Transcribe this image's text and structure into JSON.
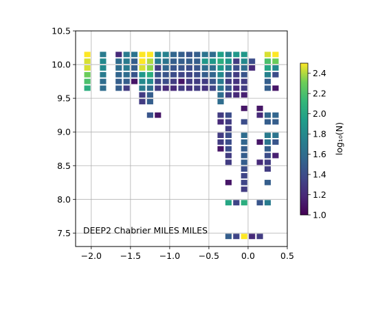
{
  "chart_data": {
    "type": "heatmap",
    "annotation": "DEEP2 Chabrier MILES MILES",
    "xlim": [
      -2.2,
      0.5
    ],
    "ylim": [
      7.3,
      10.5
    ],
    "xticks": [
      -2.0,
      -1.5,
      -1.0,
      -0.5,
      0.0,
      0.5
    ],
    "yticks": [
      7.5,
      8.0,
      8.5,
      9.0,
      9.5,
      10.0,
      10.5
    ],
    "xtick_labels": [
      "−2.0",
      "−1.5",
      "−1.0",
      "−0.5",
      "0.0",
      "0.5"
    ],
    "ytick_labels": [
      "7.5",
      "8.0",
      "8.5",
      "9.0",
      "9.5",
      "10.0",
      "10.5"
    ],
    "grid": true,
    "colorbar": {
      "label": "log₁₀(N)",
      "range": [
        1.0,
        2.5
      ],
      "ticks": [
        1.0,
        1.2,
        1.4,
        1.6,
        1.8,
        2.0,
        2.2,
        2.4
      ],
      "tick_labels": [
        "1.0",
        "1.2",
        "1.4",
        "1.6",
        "1.8",
        "2.0",
        "2.2",
        "2.4"
      ],
      "colormap": "viridis"
    },
    "cells": [
      {
        "x": -2.05,
        "y": 10.15,
        "v": 2.5
      },
      {
        "x": -2.05,
        "y": 10.05,
        "v": 2.45
      },
      {
        "x": -2.05,
        "y": 9.95,
        "v": 2.45
      },
      {
        "x": -2.05,
        "y": 9.85,
        "v": 2.3
      },
      {
        "x": -2.05,
        "y": 9.75,
        "v": 2.2
      },
      {
        "x": -2.05,
        "y": 9.65,
        "v": 2.05
      },
      {
        "x": -1.85,
        "y": 10.15,
        "v": 1.7
      },
      {
        "x": -1.85,
        "y": 10.05,
        "v": 1.8
      },
      {
        "x": -1.85,
        "y": 9.95,
        "v": 1.8
      },
      {
        "x": -1.85,
        "y": 9.85,
        "v": 1.7
      },
      {
        "x": -1.85,
        "y": 9.75,
        "v": 1.6
      },
      {
        "x": -1.85,
        "y": 9.65,
        "v": 1.6
      },
      {
        "x": -1.65,
        "y": 10.15,
        "v": 1.2
      },
      {
        "x": -1.65,
        "y": 10.05,
        "v": 1.6
      },
      {
        "x": -1.65,
        "y": 9.95,
        "v": 1.6
      },
      {
        "x": -1.65,
        "y": 9.85,
        "v": 1.55
      },
      {
        "x": -1.65,
        "y": 9.75,
        "v": 1.5
      },
      {
        "x": -1.65,
        "y": 9.65,
        "v": 1.5
      },
      {
        "x": -1.55,
        "y": 10.15,
        "v": 1.7
      },
      {
        "x": -1.55,
        "y": 10.05,
        "v": 1.7
      },
      {
        "x": -1.55,
        "y": 9.95,
        "v": 1.7
      },
      {
        "x": -1.55,
        "y": 9.85,
        "v": 1.6
      },
      {
        "x": -1.55,
        "y": 9.75,
        "v": 1.5
      },
      {
        "x": -1.55,
        "y": 9.65,
        "v": 1.3
      },
      {
        "x": -1.45,
        "y": 10.15,
        "v": 1.65
      },
      {
        "x": -1.45,
        "y": 10.05,
        "v": 1.5
      },
      {
        "x": -1.45,
        "y": 9.95,
        "v": 1.5
      },
      {
        "x": -1.45,
        "y": 9.85,
        "v": 1.45
      },
      {
        "x": -1.45,
        "y": 9.75,
        "v": 1.1
      },
      {
        "x": -1.35,
        "y": 10.15,
        "v": 2.5
      },
      {
        "x": -1.35,
        "y": 10.05,
        "v": 2.5
      },
      {
        "x": -1.35,
        "y": 9.95,
        "v": 2.45
      },
      {
        "x": -1.35,
        "y": 9.85,
        "v": 1.9
      },
      {
        "x": -1.35,
        "y": 9.75,
        "v": 1.8
      },
      {
        "x": -1.35,
        "y": 9.65,
        "v": 1.7
      },
      {
        "x": -1.35,
        "y": 9.55,
        "v": 1.3
      },
      {
        "x": -1.35,
        "y": 9.45,
        "v": 1.3
      },
      {
        "x": -1.25,
        "y": 10.15,
        "v": 2.5
      },
      {
        "x": -1.25,
        "y": 10.05,
        "v": 2.4
      },
      {
        "x": -1.25,
        "y": 9.95,
        "v": 2.35
      },
      {
        "x": -1.25,
        "y": 9.85,
        "v": 2.05
      },
      {
        "x": -1.25,
        "y": 9.75,
        "v": 1.8
      },
      {
        "x": -1.25,
        "y": 9.65,
        "v": 1.6
      },
      {
        "x": -1.25,
        "y": 9.55,
        "v": 1.5
      },
      {
        "x": -1.25,
        "y": 9.45,
        "v": 1.5
      },
      {
        "x": -1.25,
        "y": 9.25,
        "v": 1.45
      },
      {
        "x": -1.15,
        "y": 10.15,
        "v": 1.75
      },
      {
        "x": -1.15,
        "y": 10.05,
        "v": 1.7
      },
      {
        "x": -1.15,
        "y": 9.95,
        "v": 1.3
      },
      {
        "x": -1.15,
        "y": 9.85,
        "v": 1.45
      },
      {
        "x": -1.15,
        "y": 9.75,
        "v": 1.35
      },
      {
        "x": -1.15,
        "y": 9.65,
        "v": 1.3
      },
      {
        "x": -1.15,
        "y": 9.25,
        "v": 1.1
      },
      {
        "x": -1.05,
        "y": 10.15,
        "v": 1.75
      },
      {
        "x": -1.05,
        "y": 10.05,
        "v": 1.65
      },
      {
        "x": -1.05,
        "y": 9.95,
        "v": 1.55
      },
      {
        "x": -1.05,
        "y": 9.85,
        "v": 1.45
      },
      {
        "x": -1.05,
        "y": 9.75,
        "v": 1.4
      },
      {
        "x": -1.05,
        "y": 9.65,
        "v": 1.2
      },
      {
        "x": -0.95,
        "y": 10.15,
        "v": 1.55
      },
      {
        "x": -0.95,
        "y": 10.05,
        "v": 1.5
      },
      {
        "x": -0.95,
        "y": 9.95,
        "v": 1.45
      },
      {
        "x": -0.95,
        "y": 9.85,
        "v": 1.4
      },
      {
        "x": -0.95,
        "y": 9.75,
        "v": 1.3
      },
      {
        "x": -0.95,
        "y": 9.65,
        "v": 1.2
      },
      {
        "x": -0.85,
        "y": 10.15,
        "v": 1.5
      },
      {
        "x": -0.85,
        "y": 10.05,
        "v": 1.5
      },
      {
        "x": -0.85,
        "y": 9.95,
        "v": 1.45
      },
      {
        "x": -0.85,
        "y": 9.85,
        "v": 1.35
      },
      {
        "x": -0.85,
        "y": 9.75,
        "v": 1.1
      },
      {
        "x": -0.85,
        "y": 9.65,
        "v": 1.3
      },
      {
        "x": -0.75,
        "y": 10.15,
        "v": 1.45
      },
      {
        "x": -0.75,
        "y": 10.05,
        "v": 1.5
      },
      {
        "x": -0.75,
        "y": 9.95,
        "v": 1.4
      },
      {
        "x": -0.75,
        "y": 9.85,
        "v": 1.35
      },
      {
        "x": -0.75,
        "y": 9.75,
        "v": 1.3
      },
      {
        "x": -0.75,
        "y": 9.65,
        "v": 1.25
      },
      {
        "x": -0.65,
        "y": 10.15,
        "v": 1.5
      },
      {
        "x": -0.65,
        "y": 10.05,
        "v": 1.5
      },
      {
        "x": -0.65,
        "y": 9.95,
        "v": 1.45
      },
      {
        "x": -0.65,
        "y": 9.85,
        "v": 1.4
      },
      {
        "x": -0.65,
        "y": 9.75,
        "v": 1.3
      },
      {
        "x": -0.65,
        "y": 9.65,
        "v": 1.3
      },
      {
        "x": -0.55,
        "y": 10.15,
        "v": 1.65
      },
      {
        "x": -0.55,
        "y": 10.05,
        "v": 1.9
      },
      {
        "x": -0.55,
        "y": 9.95,
        "v": 1.6
      },
      {
        "x": -0.55,
        "y": 9.85,
        "v": 1.5
      },
      {
        "x": -0.55,
        "y": 9.75,
        "v": 1.3
      },
      {
        "x": -0.55,
        "y": 9.65,
        "v": 1.25
      },
      {
        "x": -0.45,
        "y": 10.15,
        "v": 1.6
      },
      {
        "x": -0.45,
        "y": 10.05,
        "v": 1.9
      },
      {
        "x": -0.45,
        "y": 9.95,
        "v": 1.6
      },
      {
        "x": -0.45,
        "y": 9.85,
        "v": 1.55
      },
      {
        "x": -0.45,
        "y": 9.75,
        "v": 1.45
      },
      {
        "x": -0.45,
        "y": 9.65,
        "v": 1.35
      },
      {
        "x": -0.35,
        "y": 10.15,
        "v": 1.95
      },
      {
        "x": -0.35,
        "y": 10.05,
        "v": 2.05
      },
      {
        "x": -0.35,
        "y": 9.95,
        "v": 1.9
      },
      {
        "x": -0.35,
        "y": 9.85,
        "v": 1.8
      },
      {
        "x": -0.35,
        "y": 9.75,
        "v": 1.7
      },
      {
        "x": -0.35,
        "y": 9.65,
        "v": 1.65
      },
      {
        "x": -0.35,
        "y": 9.55,
        "v": 1.6
      },
      {
        "x": -0.35,
        "y": 9.45,
        "v": 1.6
      },
      {
        "x": -0.35,
        "y": 9.25,
        "v": 1.3
      },
      {
        "x": -0.35,
        "y": 9.15,
        "v": 1.2
      },
      {
        "x": -0.35,
        "y": 8.95,
        "v": 1.3
      },
      {
        "x": -0.35,
        "y": 8.85,
        "v": 1.3
      },
      {
        "x": -0.35,
        "y": 8.75,
        "v": 1.1
      },
      {
        "x": -0.25,
        "y": 10.15,
        "v": 1.75
      },
      {
        "x": -0.25,
        "y": 10.05,
        "v": 1.9
      },
      {
        "x": -0.25,
        "y": 9.95,
        "v": 1.7
      },
      {
        "x": -0.25,
        "y": 9.85,
        "v": 1.45
      },
      {
        "x": -0.25,
        "y": 9.75,
        "v": 1.3
      },
      {
        "x": -0.25,
        "y": 9.65,
        "v": 1.45
      },
      {
        "x": -0.25,
        "y": 9.55,
        "v": 1.3
      },
      {
        "x": -0.25,
        "y": 9.25,
        "v": 1.4
      },
      {
        "x": -0.25,
        "y": 9.15,
        "v": 1.3
      },
      {
        "x": -0.25,
        "y": 9.05,
        "v": 1.3
      },
      {
        "x": -0.25,
        "y": 8.95,
        "v": 1.4
      },
      {
        "x": -0.25,
        "y": 8.85,
        "v": 1.4
      },
      {
        "x": -0.25,
        "y": 8.75,
        "v": 1.4
      },
      {
        "x": -0.25,
        "y": 8.65,
        "v": 1.3
      },
      {
        "x": -0.25,
        "y": 8.55,
        "v": 1.3
      },
      {
        "x": -0.25,
        "y": 8.25,
        "v": 1.1
      },
      {
        "x": -0.25,
        "y": 7.95,
        "v": 2.0
      },
      {
        "x": -0.25,
        "y": 7.45,
        "v": 1.5
      },
      {
        "x": -0.15,
        "y": 10.15,
        "v": 1.9
      },
      {
        "x": -0.15,
        "y": 10.05,
        "v": 1.3
      },
      {
        "x": -0.15,
        "y": 9.95,
        "v": 1.4
      },
      {
        "x": -0.15,
        "y": 9.85,
        "v": 1.3
      },
      {
        "x": -0.15,
        "y": 9.75,
        "v": 1.25
      },
      {
        "x": -0.15,
        "y": 9.65,
        "v": 1.2
      },
      {
        "x": -0.15,
        "y": 9.55,
        "v": 1.2
      },
      {
        "x": -0.15,
        "y": 7.95,
        "v": 1.35
      },
      {
        "x": -0.15,
        "y": 7.45,
        "v": 1.35
      },
      {
        "x": -0.05,
        "y": 10.15,
        "v": 1.9
      },
      {
        "x": -0.05,
        "y": 10.05,
        "v": 1.8
      },
      {
        "x": -0.05,
        "y": 9.95,
        "v": 1.6
      },
      {
        "x": -0.05,
        "y": 9.85,
        "v": 1.45
      },
      {
        "x": -0.05,
        "y": 9.75,
        "v": 1.3
      },
      {
        "x": -0.05,
        "y": 9.65,
        "v": 1.3
      },
      {
        "x": -0.05,
        "y": 9.55,
        "v": 1.15
      },
      {
        "x": -0.05,
        "y": 9.35,
        "v": 1.1
      },
      {
        "x": -0.05,
        "y": 9.15,
        "v": 1.4
      },
      {
        "x": -0.05,
        "y": 8.95,
        "v": 1.6
      },
      {
        "x": -0.05,
        "y": 8.85,
        "v": 1.55
      },
      {
        "x": -0.05,
        "y": 8.75,
        "v": 1.5
      },
      {
        "x": -0.05,
        "y": 8.65,
        "v": 1.5
      },
      {
        "x": -0.05,
        "y": 8.55,
        "v": 1.5
      },
      {
        "x": -0.05,
        "y": 8.45,
        "v": 1.4
      },
      {
        "x": -0.05,
        "y": 8.35,
        "v": 1.35
      },
      {
        "x": -0.05,
        "y": 8.25,
        "v": 1.35
      },
      {
        "x": -0.05,
        "y": 8.15,
        "v": 1.3
      },
      {
        "x": -0.05,
        "y": 7.95,
        "v": 2.05
      },
      {
        "x": -0.05,
        "y": 7.45,
        "v": 2.5
      },
      {
        "x": 0.05,
        "y": 10.05,
        "v": 1.4
      },
      {
        "x": 0.05,
        "y": 9.95,
        "v": 1.2
      },
      {
        "x": 0.05,
        "y": 7.45,
        "v": 1.2
      },
      {
        "x": 0.15,
        "y": 9.35,
        "v": 1.1
      },
      {
        "x": 0.15,
        "y": 9.25,
        "v": 1.2
      },
      {
        "x": 0.15,
        "y": 8.85,
        "v": 1.1
      },
      {
        "x": 0.15,
        "y": 8.55,
        "v": 1.2
      },
      {
        "x": 0.15,
        "y": 7.95,
        "v": 1.45
      },
      {
        "x": 0.15,
        "y": 7.45,
        "v": 1.3
      },
      {
        "x": 0.25,
        "y": 10.15,
        "v": 2.45
      },
      {
        "x": 0.25,
        "y": 10.05,
        "v": 2.2
      },
      {
        "x": 0.25,
        "y": 9.95,
        "v": 2.0
      },
      {
        "x": 0.25,
        "y": 9.85,
        "v": 1.75
      },
      {
        "x": 0.25,
        "y": 9.75,
        "v": 1.5
      },
      {
        "x": 0.25,
        "y": 9.65,
        "v": 1.5
      },
      {
        "x": 0.25,
        "y": 9.25,
        "v": 1.55
      },
      {
        "x": 0.25,
        "y": 9.15,
        "v": 1.5
      },
      {
        "x": 0.25,
        "y": 8.95,
        "v": 1.7
      },
      {
        "x": 0.25,
        "y": 8.85,
        "v": 1.65
      },
      {
        "x": 0.25,
        "y": 8.75,
        "v": 1.5
      },
      {
        "x": 0.25,
        "y": 8.65,
        "v": 1.4
      },
      {
        "x": 0.25,
        "y": 8.55,
        "v": 1.3
      },
      {
        "x": 0.25,
        "y": 8.45,
        "v": 1.3
      },
      {
        "x": 0.25,
        "y": 8.25,
        "v": 1.5
      },
      {
        "x": 0.25,
        "y": 7.95,
        "v": 1.7
      },
      {
        "x": 0.35,
        "y": 10.15,
        "v": 2.5
      },
      {
        "x": 0.35,
        "y": 10.05,
        "v": 2.3
      },
      {
        "x": 0.35,
        "y": 9.95,
        "v": 1.8
      },
      {
        "x": 0.35,
        "y": 9.85,
        "v": 1.4
      },
      {
        "x": 0.35,
        "y": 9.65,
        "v": 1.1
      },
      {
        "x": 0.35,
        "y": 9.25,
        "v": 1.55
      },
      {
        "x": 0.35,
        "y": 9.15,
        "v": 1.5
      },
      {
        "x": 0.35,
        "y": 8.95,
        "v": 1.65
      },
      {
        "x": 0.35,
        "y": 8.85,
        "v": 1.45
      },
      {
        "x": 0.35,
        "y": 8.65,
        "v": 1.15
      }
    ]
  }
}
